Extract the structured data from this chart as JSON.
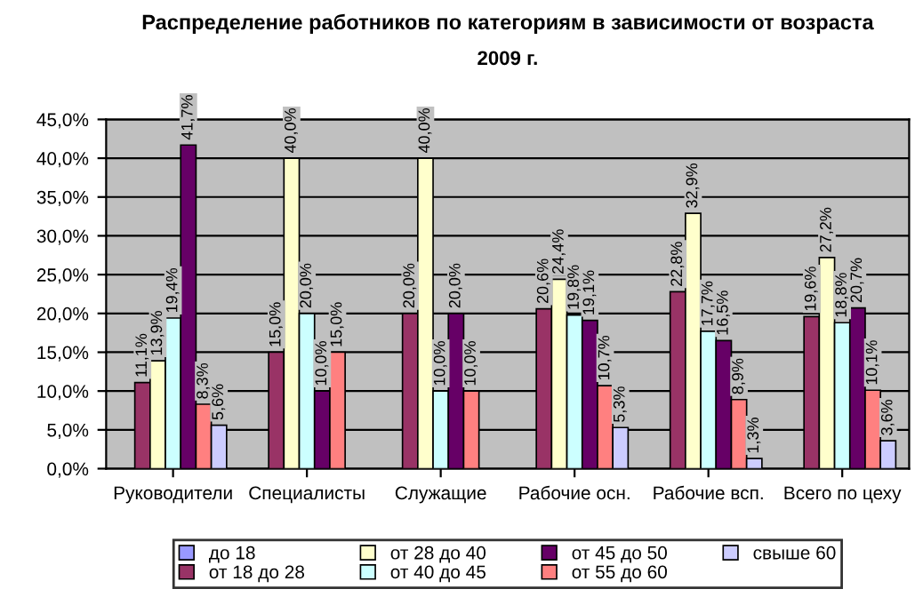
{
  "chart_data": {
    "type": "bar",
    "title": "Распределение работников по категориям в зависимости от возраста",
    "subtitle": "2009 г.",
    "categories": [
      "Руководители",
      "Специалисты",
      "Служащие",
      "Рабочие осн.",
      "Рабочие всп.",
      "Всего по цеху"
    ],
    "series": [
      {
        "name": "до 18",
        "color": "#9999ff",
        "values": [
          null,
          null,
          null,
          null,
          null,
          null
        ],
        "value_labels": [
          null,
          null,
          null,
          null,
          null,
          null
        ]
      },
      {
        "name": "от 18 до 28",
        "color": "#993366",
        "values": [
          11.1,
          15.0,
          20.0,
          20.6,
          22.8,
          19.6
        ],
        "value_labels": [
          "11,1%",
          "15,0%",
          "20,0%",
          "20,6%",
          "22,8%",
          "19,6%"
        ]
      },
      {
        "name": "от 28 до 40",
        "color": "#ffffcc",
        "values": [
          13.9,
          40.0,
          40.0,
          24.4,
          32.9,
          27.2
        ],
        "value_labels": [
          "13,9%",
          "40,0%",
          "40,0%",
          "24,4%",
          "32,9%",
          "27,2%"
        ]
      },
      {
        "name": "от 40 до 45",
        "color": "#ccffff",
        "values": [
          19.4,
          20.0,
          10.0,
          19.8,
          17.7,
          18.8
        ],
        "value_labels": [
          "19,4%",
          "20,0%",
          "10,0%",
          "19,8%",
          "17,7%",
          "18,8%"
        ]
      },
      {
        "name": "от 45 до 50",
        "color": "#660066",
        "values": [
          41.7,
          10.0,
          20.0,
          19.1,
          16.5,
          20.7
        ],
        "value_labels": [
          "41,7%",
          "10,0%",
          "20,0%",
          "19,1%",
          "16,5%",
          "20,7%"
        ]
      },
      {
        "name": "от 55 до 60",
        "color": "#ff8080",
        "values": [
          8.3,
          15.0,
          10.0,
          10.7,
          8.9,
          10.1
        ],
        "value_labels": [
          "8,3%",
          "15,0%",
          "10,0%",
          "10,7%",
          "8,9%",
          "10,1%"
        ]
      },
      {
        "name": "свыше 60",
        "color": "#ccccff",
        "values": [
          5.6,
          null,
          null,
          5.3,
          1.3,
          3.6
        ],
        "value_labels": [
          "5,6%",
          null,
          null,
          "5,3%",
          "1,3%",
          "3,6%"
        ]
      }
    ],
    "ylim": [
      0,
      45
    ],
    "yticks": [
      {
        "value": 0,
        "label": "0,0%"
      },
      {
        "value": 5,
        "label": "5,0%"
      },
      {
        "value": 10,
        "label": "10,0%"
      },
      {
        "value": 15,
        "label": "15,0%"
      },
      {
        "value": 20,
        "label": "20,0%"
      },
      {
        "value": 25,
        "label": "25,0%"
      },
      {
        "value": 30,
        "label": "30,0%"
      },
      {
        "value": 35,
        "label": "35,0%"
      },
      {
        "value": 40,
        "label": "40,0%"
      },
      {
        "value": 45,
        "label": "45,0%"
      }
    ],
    "grid": "y",
    "legend": "bottom"
  }
}
